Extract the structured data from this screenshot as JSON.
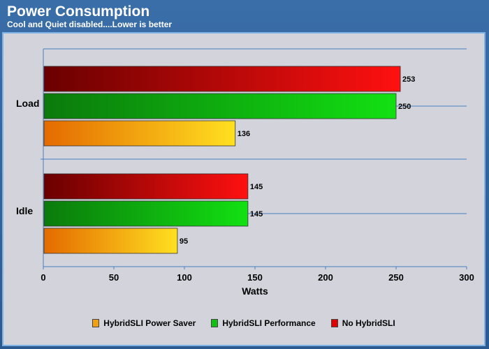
{
  "header": {
    "title": "Power Consumption",
    "subtitle": "Cool and Quiet disabled....Lower is better"
  },
  "chart_data": {
    "type": "bar",
    "orientation": "horizontal",
    "title": "Power Consumption",
    "subtitle": "Cool and Quiet disabled....Lower is better",
    "xlabel": "Watts",
    "ylabel": "",
    "xlim": [
      0,
      300
    ],
    "x_ticks": [
      0,
      50,
      100,
      150,
      200,
      250,
      300
    ],
    "grid": true,
    "legend_position": "bottom",
    "categories": [
      "Load",
      "Idle"
    ],
    "series": [
      {
        "name": "No HybridSLI",
        "values": [
          253,
          145
        ],
        "color": "#e00000"
      },
      {
        "name": "HybridSLI Performance",
        "values": [
          250,
          145
        ],
        "color": "#10c010"
      },
      {
        "name": "HybridSLI Power Saver",
        "values": [
          136,
          95
        ],
        "color": "#f0a010"
      }
    ]
  },
  "legend": {
    "items": [
      {
        "label": "HybridSLI Power Saver",
        "color": "#f0a010"
      },
      {
        "label": "HybridSLI Performance",
        "color": "#10c010"
      },
      {
        "label": "No HybridSLI",
        "color": "#e00000"
      }
    ]
  }
}
